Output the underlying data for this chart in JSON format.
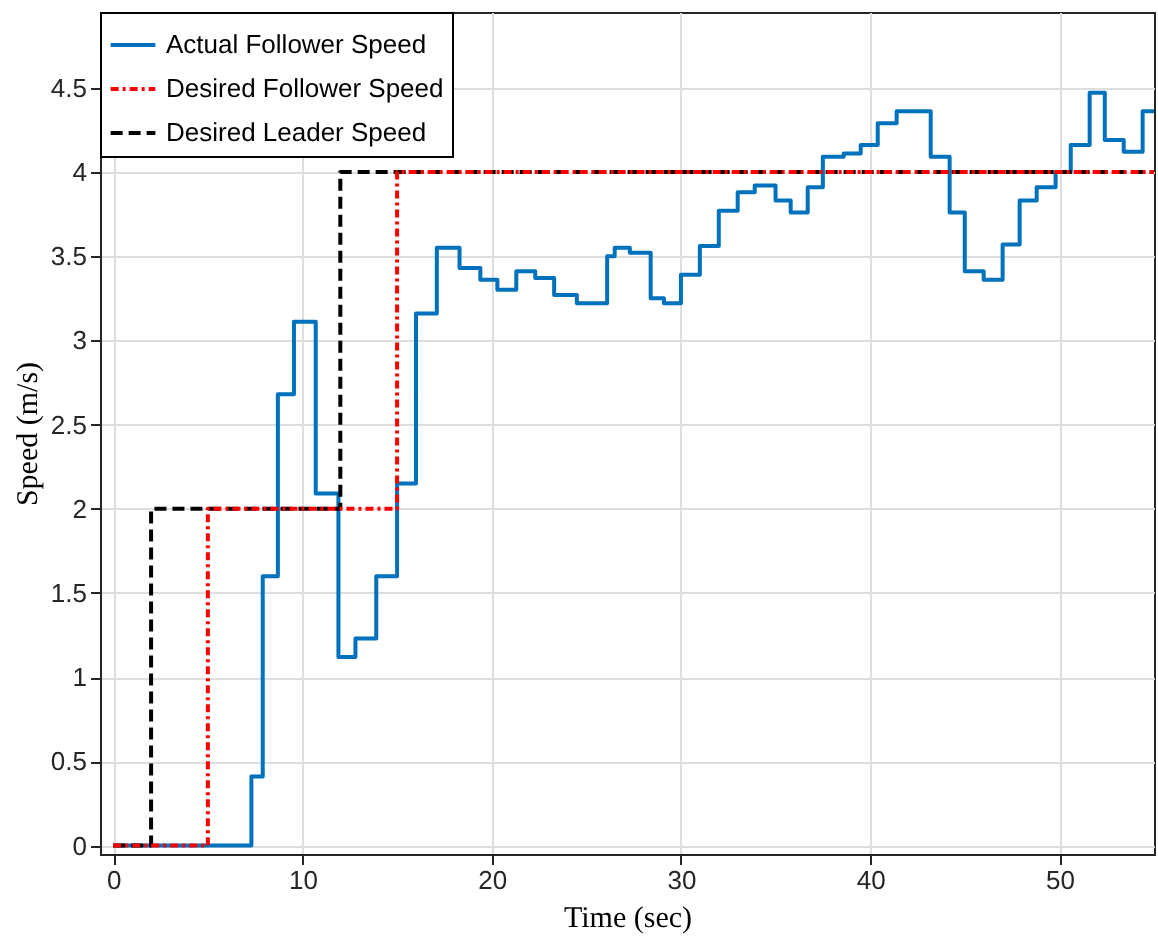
{
  "chart_data": {
    "type": "step",
    "xlabel": "Time (sec)",
    "ylabel": "Speed (m/s)",
    "xlim": [
      -0.7,
      55
    ],
    "ylim": [
      -0.05,
      4.95
    ],
    "xticks": [
      0,
      10,
      20,
      30,
      40,
      50
    ],
    "yticks": [
      0,
      0.5,
      1,
      1.5,
      2,
      2.5,
      3,
      3.5,
      4,
      4.5
    ],
    "grid": true,
    "legend": "top left",
    "series": [
      {
        "name": "Actual Follower Speed",
        "color": "#0072bd",
        "line_style": "solid",
        "x": [
          0,
          7.3,
          7.9,
          8.7,
          9.55,
          10.7,
          11.9,
          12.8,
          13.9,
          15.0,
          16.0,
          17.1,
          18.3,
          19.4,
          20.3,
          21.3,
          22.3,
          23.3,
          24.5,
          26.1,
          26.5,
          27.3,
          28.4,
          29.1,
          30.0,
          31.0,
          32.0,
          33.0,
          33.9,
          35.0,
          35.8,
          36.7,
          37.5,
          38.6,
          39.5,
          40.4,
          41.4,
          43.2,
          44.2,
          45.0,
          46.0,
          47.0,
          47.9,
          48.8,
          49.8,
          50.6,
          51.6,
          52.4,
          53.4,
          54.4,
          55
        ],
        "values": [
          0,
          0.41,
          1.6,
          2.68,
          3.11,
          2.09,
          1.12,
          1.23,
          1.6,
          2.15,
          3.16,
          3.55,
          3.43,
          3.36,
          3.3,
          3.41,
          3.37,
          3.27,
          3.22,
          3.5,
          3.55,
          3.52,
          3.25,
          3.22,
          3.39,
          3.56,
          3.77,
          3.88,
          3.92,
          3.83,
          3.76,
          3.91,
          4.09,
          4.11,
          4.16,
          4.29,
          4.36,
          4.09,
          3.76,
          3.41,
          3.36,
          3.57,
          3.83,
          3.91,
          4.0,
          4.16,
          4.47,
          4.19,
          4.12,
          4.36,
          4.36
        ]
      },
      {
        "name": "Desired Follower Speed",
        "color": "#ff0000",
        "line_style": "dashdot",
        "x": [
          0,
          5,
          15,
          55
        ],
        "values": [
          0,
          2,
          4,
          4
        ]
      },
      {
        "name": "Desired Leader Speed",
        "color": "#000000",
        "line_style": "dashed",
        "x": [
          0,
          2,
          12,
          55
        ],
        "values": [
          0,
          2,
          4,
          4
        ]
      }
    ]
  }
}
